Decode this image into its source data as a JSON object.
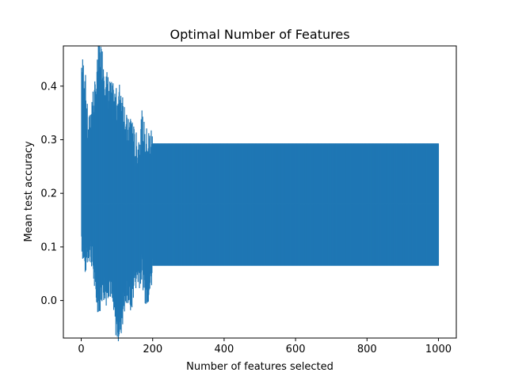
{
  "chart_data": {
    "type": "errorbar",
    "title": "Optimal Number of Features",
    "xlabel": "Number of features selected",
    "ylabel": "Mean test accuracy",
    "xlim": [
      -50,
      1050
    ],
    "ylim": [
      -0.07,
      0.475
    ],
    "x_ticks": [
      0,
      200,
      400,
      600,
      800,
      1000
    ],
    "x_tick_labels": [
      "0",
      "200",
      "400",
      "600",
      "800",
      "1000"
    ],
    "y_ticks": [
      0.0,
      0.1,
      0.2,
      0.3,
      0.4
    ],
    "y_tick_labels": [
      "0.0",
      "0.1",
      "0.2",
      "0.3",
      "0.4"
    ],
    "grid": false,
    "legend": "none",
    "color": "#1f77b4",
    "series": [
      {
        "n_features_range": [
          1,
          1000
        ],
        "mean_accuracy_approx": 0.18,
        "error_band": [
          {
            "x": 1,
            "lower": 0.12,
            "upper": 0.43
          },
          {
            "x": 10,
            "lower": 0.07,
            "upper": 0.41
          },
          {
            "x": 20,
            "lower": 0.1,
            "upper": 0.3
          },
          {
            "x": 30,
            "lower": 0.09,
            "upper": 0.36
          },
          {
            "x": 40,
            "lower": 0.02,
            "upper": 0.38
          },
          {
            "x": 50,
            "lower": 0.0,
            "upper": 0.455
          },
          {
            "x": 60,
            "lower": 0.03,
            "upper": 0.44
          },
          {
            "x": 70,
            "lower": 0.02,
            "upper": 0.4
          },
          {
            "x": 80,
            "lower": 0.04,
            "upper": 0.38
          },
          {
            "x": 90,
            "lower": -0.01,
            "upper": 0.37
          },
          {
            "x": 100,
            "lower": -0.05,
            "upper": 0.36
          },
          {
            "x": 110,
            "lower": -0.045,
            "upper": 0.38
          },
          {
            "x": 120,
            "lower": 0.0,
            "upper": 0.35
          },
          {
            "x": 130,
            "lower": 0.02,
            "upper": 0.3
          },
          {
            "x": 140,
            "lower": 0.0,
            "upper": 0.33
          },
          {
            "x": 150,
            "lower": 0.05,
            "upper": 0.28
          },
          {
            "x": 160,
            "lower": 0.05,
            "upper": 0.28
          },
          {
            "x": 170,
            "lower": 0.06,
            "upper": 0.32
          },
          {
            "x": 180,
            "lower": 0.02,
            "upper": 0.29
          },
          {
            "x": 190,
            "lower": 0.022,
            "upper": 0.29
          },
          {
            "x": 200,
            "lower": 0.065,
            "upper": 0.293
          },
          {
            "x": 1000,
            "lower": 0.065,
            "upper": 0.293
          }
        ]
      }
    ]
  }
}
